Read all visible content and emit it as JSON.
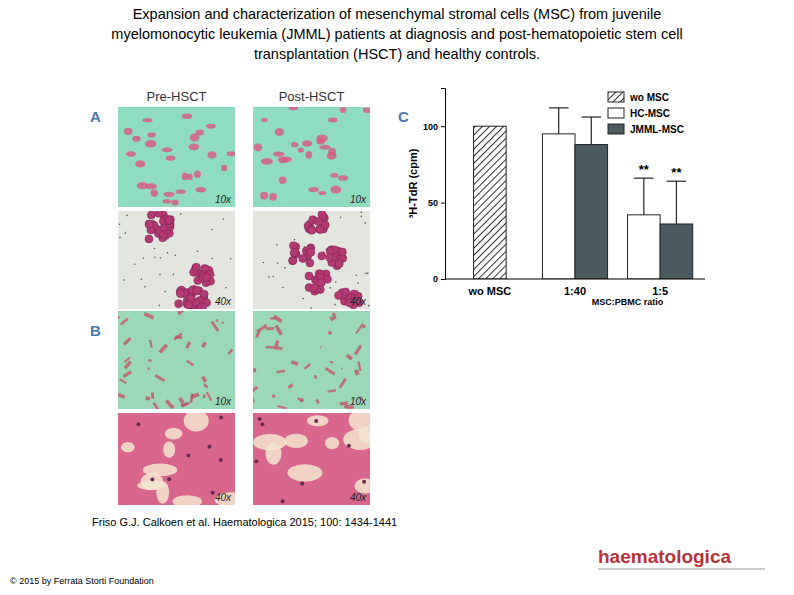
{
  "title": [
    "Expansion and characterization of mesenchymal stromal cells (MSC) from juvenile",
    "myelomonocytic leukemia (JMML) patients at diagnosis and post-hematopoietic stem cell",
    "transplantation (HSCT) and healthy controls."
  ],
  "panels": [
    {
      "label": "A",
      "columns": [
        "Pre-HSCT",
        "Post-HSCT"
      ],
      "rows": [
        [
          "10x",
          "10x"
        ],
        [
          "40x",
          "40x"
        ]
      ]
    },
    {
      "label": "B",
      "rows": [
        [
          "10x",
          "10x"
        ],
        [
          "40x",
          "40x"
        ]
      ]
    }
  ],
  "citation": "Friso G.J. Calkoen et al. Haematologica 2015; 100: 1434-1441",
  "copyright": "© 2015 by Ferrata Storti Foundation",
  "logo": "haematologica",
  "chart_data": {
    "type": "bar",
    "panel_label": "C",
    "categories": [
      "wo MSC",
      "1:40",
      "1:5"
    ],
    "series": [
      {
        "name": "wo MSC",
        "color": "#333333",
        "marker": "hatch",
        "values": [
          100,
          null,
          null
        ],
        "errors": [
          null,
          null,
          null
        ]
      },
      {
        "name": "HC-MSC",
        "color": "#ffffff",
        "values": [
          null,
          95,
          42
        ],
        "errors": [
          null,
          17,
          24
        ]
      },
      {
        "name": "JMML-MSC",
        "color": "#4a5a5e",
        "values": [
          null,
          88,
          36
        ],
        "errors": [
          null,
          18,
          28
        ]
      }
    ],
    "y_label": "³H-TdR (cpm)",
    "x_label": "MSC:PBMC ratio",
    "ylim": [
      0,
      125
    ],
    "yticks": [
      0,
      50,
      100
    ],
    "legend": "top-right",
    "annotations": [
      {
        "text": "**",
        "category": 2,
        "series": 1
      },
      {
        "text": "**",
        "category": 2,
        "series": 2
      }
    ]
  }
}
